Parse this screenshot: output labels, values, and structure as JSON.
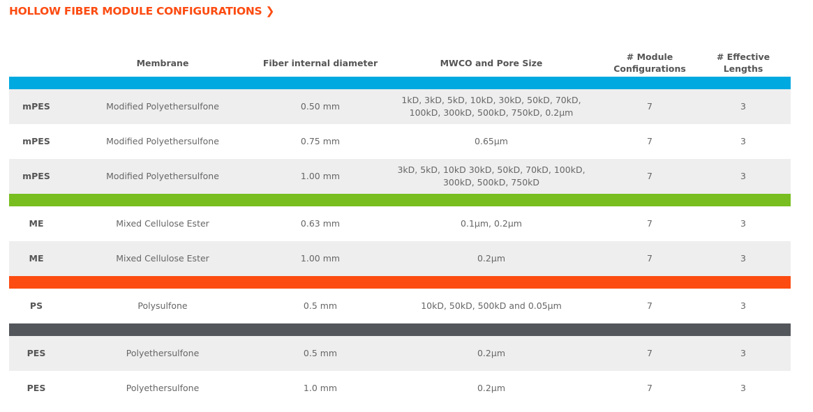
{
  "title": "HOLLOW FIBER MODULE CONFIGURATIONS",
  "title_icon": "chevron-right-icon",
  "headers": [
    "",
    "Membrane",
    "Fiber internal diameter",
    "MWCO and Pore Size",
    "# Module Configurations",
    "# Effective Lengths"
  ],
  "groups": [
    {
      "color": "#00a9e0",
      "rows": [
        {
          "code": "mPES",
          "membrane": "Modified Polyethersulfone",
          "diameter": "0.50 mm",
          "mwco": "1kD, 3kD, 5kD, 10kD, 30kD, 50kD, 70kD, 100kD, 300kD, 500kD, 750kD, 0.2µm",
          "modules": "7",
          "lengths": "3",
          "shaded": true
        },
        {
          "code": "mPES",
          "membrane": "Modified Polyethersulfone",
          "diameter": "0.75 mm",
          "mwco": "0.65µm",
          "modules": "7",
          "lengths": "3",
          "shaded": false
        },
        {
          "code": "mPES",
          "membrane": "Modified Polyethersulfone",
          "diameter": "1.00 mm",
          "mwco": "3kD, 5kD, 10kD 30kD, 50kD, 70kD, 100kD, 300kD, 500kD, 750kD",
          "modules": "7",
          "lengths": "3",
          "shaded": true
        }
      ]
    },
    {
      "color": "#78be20",
      "rows": [
        {
          "code": "ME",
          "membrane": "Mixed Cellulose Ester",
          "diameter": "0.63 mm",
          "mwco": "0.1µm, 0.2µm",
          "modules": "7",
          "lengths": "3",
          "shaded": false
        },
        {
          "code": "ME",
          "membrane": "Mixed Cellulose Ester",
          "diameter": "1.00 mm",
          "mwco": "0.2µm",
          "modules": "7",
          "lengths": "3",
          "shaded": true
        }
      ]
    },
    {
      "color": "#fc4c12",
      "rows": [
        {
          "code": "PS",
          "membrane": "Polysulfone",
          "diameter": "0.5 mm",
          "mwco": "10kD, 50kD, 500kD and 0.05µm",
          "modules": "7",
          "lengths": "3",
          "shaded": false
        }
      ]
    },
    {
      "color": "#53565a",
      "rows": [
        {
          "code": "PES",
          "membrane": "Polyethersulfone",
          "diameter": "0.5 mm",
          "mwco": "0.2µm",
          "modules": "7",
          "lengths": "3",
          "shaded": true
        },
        {
          "code": "PES",
          "membrane": "Polyethersulfone",
          "diameter": "1.0 mm",
          "mwco": "0.2µm",
          "modules": "7",
          "lengths": "3",
          "shaded": false
        }
      ]
    }
  ]
}
